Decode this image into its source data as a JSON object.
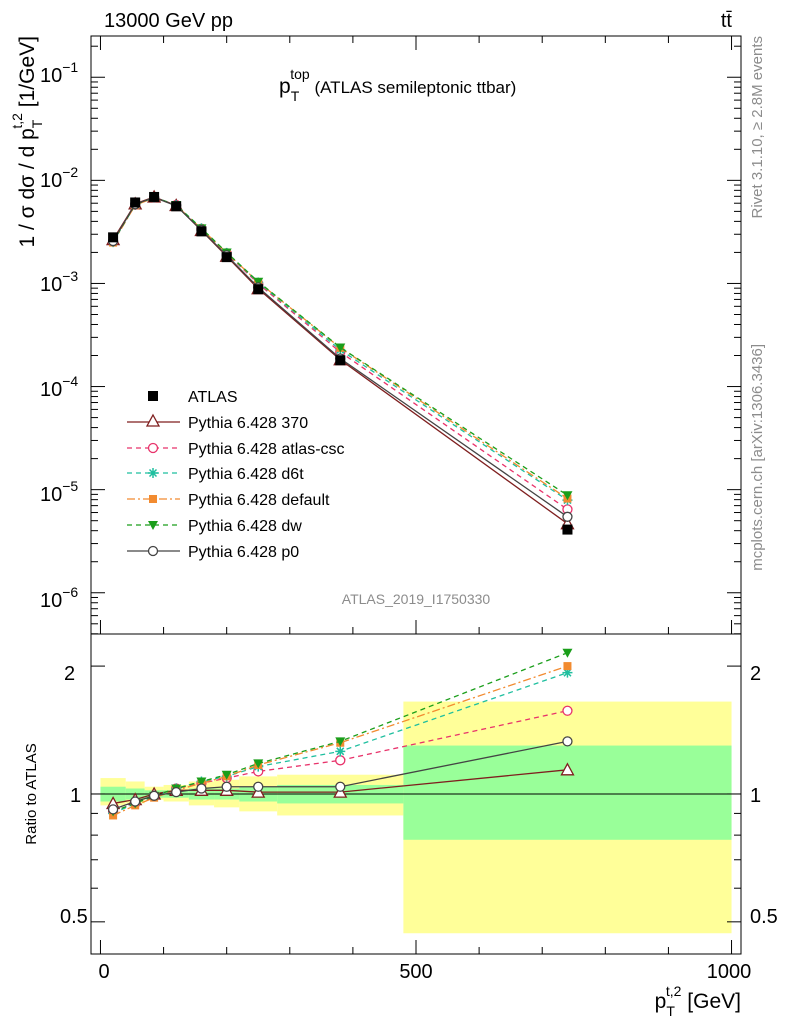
{
  "header": {
    "left": "13000 GeV pp",
    "right": "tt̄"
  },
  "side_text": {
    "rivet": "Rivet 3.1.10, ≥ 2.8M events",
    "mcplots": "mcplots.cern.ch [arXiv:1306.3436]"
  },
  "chart_data": {
    "type": "line",
    "title": {
      "main": "p",
      "sub": "T",
      "sup": "top",
      "rest": " (ATLAS semileptonic ttbar)"
    },
    "analysis_label": "ATLAS_2019_I1750330",
    "ylabel": {
      "main": "1 / σ dσ / d p",
      "sub": "T",
      "sup": "t,2",
      "unit": " [1/GeV]"
    },
    "xlabel": {
      "main": "p",
      "sub": "T",
      "sup": "t,2",
      "unit": " [GeV]"
    },
    "ratio_ylabel": "Ratio to ATLAS",
    "x_ticks": [
      "0",
      "500",
      "1000"
    ],
    "ratio_ticks": [
      "0.5",
      "1",
      "2"
    ],
    "y_ticks": [
      {
        "base": "10",
        "exp": "−1"
      },
      {
        "base": "10",
        "exp": "−2"
      },
      {
        "base": "10",
        "exp": "−3"
      },
      {
        "base": "10",
        "exp": "−4"
      },
      {
        "base": "10",
        "exp": "−5"
      },
      {
        "base": "10",
        "exp": "−6"
      }
    ],
    "xlim": [
      -15,
      1015
    ],
    "ylim_log10": [
      -6.4,
      -0.6
    ],
    "ratio_lim": [
      0.42,
      2.38
    ],
    "x": [
      20,
      55,
      85,
      120,
      160,
      200,
      250,
      380,
      740
    ],
    "bin_edges": [
      0,
      40,
      70,
      100,
      140,
      180,
      220,
      280,
      480,
      1000
    ],
    "data": {
      "name": "ATLAS",
      "values": [
        0.0028,
        0.0061,
        0.0069,
        0.0056,
        0.0032,
        0.0018,
        0.00088,
        0.00018,
        4.1e-06
      ],
      "band_inner": [
        [
          0.96,
          1.04
        ],
        [
          0.97,
          1.03
        ],
        [
          0.98,
          1.02
        ],
        [
          0.98,
          1.02
        ],
        [
          0.97,
          1.03
        ],
        [
          0.97,
          1.03
        ],
        [
          0.96,
          1.04
        ],
        [
          0.95,
          1.05
        ],
        [
          0.78,
          1.3
        ]
      ],
      "band_outer": [
        [
          0.94,
          1.09
        ],
        [
          0.95,
          1.07
        ],
        [
          0.97,
          1.04
        ],
        [
          0.96,
          1.05
        ],
        [
          0.94,
          1.07
        ],
        [
          0.93,
          1.08
        ],
        [
          0.91,
          1.1
        ],
        [
          0.89,
          1.11
        ],
        [
          0.47,
          1.65
        ]
      ]
    },
    "series": [
      {
        "name": "Pythia 6.428 370",
        "color": "#7f1f1f",
        "dash": "",
        "marker": "triangle-open",
        "ratio": [
          0.95,
          0.97,
          1.0,
          1.02,
          1.02,
          1.02,
          1.01,
          1.01,
          1.14
        ]
      },
      {
        "name": "Pythia 6.428 atlas-csc",
        "color": "#e8336b",
        "dash": "5,4",
        "marker": "circle-open",
        "ratio": [
          0.91,
          0.95,
          0.99,
          1.03,
          1.06,
          1.09,
          1.13,
          1.2,
          1.57
        ]
      },
      {
        "name": "Pythia 6.428 d6t",
        "color": "#1fbf9f",
        "dash": "5,4",
        "marker": "star",
        "ratio": [
          0.9,
          0.95,
          0.99,
          1.03,
          1.07,
          1.1,
          1.16,
          1.26,
          1.93
        ]
      },
      {
        "name": "Pythia 6.428 default",
        "color": "#f28b30",
        "dash": "8,3,2,3",
        "marker": "square",
        "ratio": [
          0.89,
          0.94,
          0.98,
          1.02,
          1.06,
          1.1,
          1.17,
          1.32,
          2.0
        ]
      },
      {
        "name": "Pythia 6.428 dw",
        "color": "#1a9e1a",
        "dash": "5,4",
        "marker": "triangle-down",
        "ratio": [
          0.91,
          0.95,
          0.99,
          1.03,
          1.07,
          1.11,
          1.18,
          1.33,
          2.15
        ]
      },
      {
        "name": "Pythia 6.428 p0",
        "color": "#444444",
        "dash": "",
        "marker": "circle-open",
        "ratio": [
          0.92,
          0.96,
          0.99,
          1.01,
          1.03,
          1.04,
          1.04,
          1.04,
          1.33
        ]
      }
    ]
  }
}
